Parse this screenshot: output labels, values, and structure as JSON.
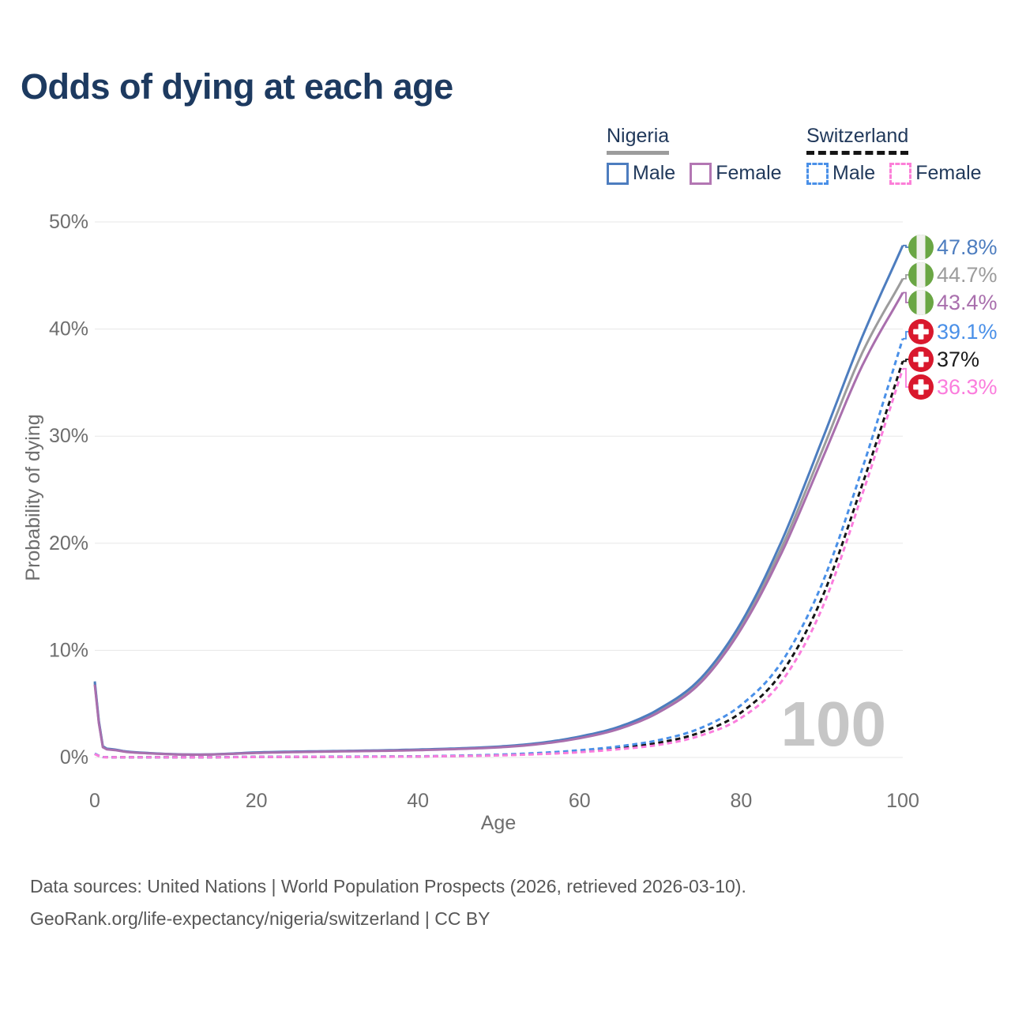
{
  "title": "Odds of dying at each age",
  "legend": {
    "groups": [
      {
        "label": "Nigeria",
        "line_style": "solid",
        "underline_color": "#9c9c9c",
        "items": [
          {
            "label": "Male",
            "color": "#4d7dbf"
          },
          {
            "label": "Female",
            "color": "#b377b3"
          }
        ]
      },
      {
        "label": "Switzerland",
        "line_style": "dashed",
        "underline_color": "#151515",
        "items": [
          {
            "label": "Male",
            "color": "#4a90e8"
          },
          {
            "label": "Female",
            "color": "#fc7fd8"
          }
        ]
      }
    ]
  },
  "chart_data": {
    "type": "line",
    "title": "Odds of dying at each age",
    "xlabel": "Age",
    "ylabel": "Probability of dying",
    "xlim": [
      0,
      100
    ],
    "ylim": [
      0,
      50
    ],
    "x_ticks": [
      0,
      20,
      40,
      60,
      80,
      100
    ],
    "y_tick_labels": [
      "0%",
      "10%",
      "20%",
      "30%",
      "40%",
      "50%"
    ],
    "grid": "horizontal",
    "legend_position": "top-right",
    "watermark": "100",
    "series": [
      {
        "id": "nigeria-male",
        "country": "Nigeria",
        "sex": "male",
        "color": "#4d7dbf",
        "dashed": false,
        "end_label": "47.8%",
        "points": [
          [
            0,
            7.1
          ],
          [
            1,
            1.05
          ],
          [
            2,
            0.78
          ],
          [
            4,
            0.55
          ],
          [
            6,
            0.44
          ],
          [
            8,
            0.36
          ],
          [
            10,
            0.3
          ],
          [
            13,
            0.27
          ],
          [
            16,
            0.33
          ],
          [
            20,
            0.47
          ],
          [
            25,
            0.55
          ],
          [
            30,
            0.6
          ],
          [
            35,
            0.66
          ],
          [
            40,
            0.74
          ],
          [
            45,
            0.85
          ],
          [
            50,
            1.02
          ],
          [
            55,
            1.35
          ],
          [
            60,
            1.95
          ],
          [
            65,
            2.9
          ],
          [
            70,
            4.6
          ],
          [
            75,
            7.4
          ],
          [
            80,
            12.6
          ],
          [
            85,
            20.2
          ],
          [
            90,
            29.6
          ],
          [
            95,
            39.3
          ],
          [
            100,
            47.8
          ]
        ]
      },
      {
        "id": "nigeria-both",
        "country": "Nigeria",
        "sex": "both",
        "color": "#9c9c9c",
        "dashed": false,
        "end_label": "44.7%",
        "points": [
          [
            0,
            6.95
          ],
          [
            1,
            1.0
          ],
          [
            2,
            0.75
          ],
          [
            4,
            0.53
          ],
          [
            6,
            0.42
          ],
          [
            8,
            0.35
          ],
          [
            10,
            0.29
          ],
          [
            13,
            0.26
          ],
          [
            16,
            0.32
          ],
          [
            20,
            0.44
          ],
          [
            25,
            0.52
          ],
          [
            30,
            0.58
          ],
          [
            35,
            0.63
          ],
          [
            40,
            0.71
          ],
          [
            45,
            0.82
          ],
          [
            50,
            0.98
          ],
          [
            55,
            1.3
          ],
          [
            60,
            1.87
          ],
          [
            65,
            2.8
          ],
          [
            70,
            4.45
          ],
          [
            75,
            7.2
          ],
          [
            80,
            12.3
          ],
          [
            85,
            19.6
          ],
          [
            90,
            28.6
          ],
          [
            95,
            37.8
          ],
          [
            100,
            44.7
          ]
        ]
      },
      {
        "id": "nigeria-female",
        "country": "Nigeria",
        "sex": "female",
        "color": "#a96fad",
        "dashed": false,
        "end_label": "43.4%",
        "points": [
          [
            0,
            6.8
          ],
          [
            1,
            0.95
          ],
          [
            2,
            0.72
          ],
          [
            4,
            0.51
          ],
          [
            6,
            0.41
          ],
          [
            8,
            0.34
          ],
          [
            10,
            0.28
          ],
          [
            13,
            0.26
          ],
          [
            16,
            0.31
          ],
          [
            20,
            0.42
          ],
          [
            25,
            0.5
          ],
          [
            30,
            0.56
          ],
          [
            35,
            0.61
          ],
          [
            40,
            0.68
          ],
          [
            45,
            0.79
          ],
          [
            50,
            0.94
          ],
          [
            55,
            1.25
          ],
          [
            60,
            1.8
          ],
          [
            65,
            2.7
          ],
          [
            70,
            4.3
          ],
          [
            75,
            7.0
          ],
          [
            80,
            12.0
          ],
          [
            85,
            19.1
          ],
          [
            90,
            27.8
          ],
          [
            95,
            36.6
          ],
          [
            100,
            43.4
          ]
        ]
      },
      {
        "id": "switzerland-male",
        "country": "Switzerland",
        "sex": "male",
        "color": "#4a90e8",
        "dashed": true,
        "end_label": "39.1%",
        "points": [
          [
            0,
            0.36
          ],
          [
            1,
            0.04
          ],
          [
            5,
            0.02
          ],
          [
            10,
            0.015
          ],
          [
            15,
            0.03
          ],
          [
            20,
            0.06
          ],
          [
            25,
            0.07
          ],
          [
            30,
            0.08
          ],
          [
            35,
            0.09
          ],
          [
            40,
            0.11
          ],
          [
            45,
            0.17
          ],
          [
            50,
            0.26
          ],
          [
            55,
            0.42
          ],
          [
            60,
            0.67
          ],
          [
            65,
            1.05
          ],
          [
            70,
            1.65
          ],
          [
            75,
            2.75
          ],
          [
            80,
            4.9
          ],
          [
            85,
            8.9
          ],
          [
            90,
            16.2
          ],
          [
            95,
            27.0
          ],
          [
            100,
            39.1
          ]
        ]
      },
      {
        "id": "switzerland-both",
        "country": "Switzerland",
        "sex": "both",
        "color": "#151515",
        "dashed": true,
        "end_label": "37%",
        "points": [
          [
            0,
            0.34
          ],
          [
            1,
            0.035
          ],
          [
            5,
            0.018
          ],
          [
            10,
            0.013
          ],
          [
            15,
            0.025
          ],
          [
            20,
            0.05
          ],
          [
            25,
            0.055
          ],
          [
            30,
            0.065
          ],
          [
            35,
            0.075
          ],
          [
            40,
            0.095
          ],
          [
            45,
            0.15
          ],
          [
            50,
            0.22
          ],
          [
            55,
            0.36
          ],
          [
            60,
            0.57
          ],
          [
            65,
            0.9
          ],
          [
            70,
            1.4
          ],
          [
            75,
            2.35
          ],
          [
            80,
            4.2
          ],
          [
            85,
            7.9
          ],
          [
            90,
            14.9
          ],
          [
            95,
            25.5
          ],
          [
            100,
            37.0
          ]
        ]
      },
      {
        "id": "switzerland-female",
        "country": "Switzerland",
        "sex": "female",
        "color": "#fb7ddd",
        "dashed": true,
        "end_label": "36.3%",
        "points": [
          [
            0,
            0.32
          ],
          [
            1,
            0.03
          ],
          [
            5,
            0.016
          ],
          [
            10,
            0.012
          ],
          [
            15,
            0.02
          ],
          [
            20,
            0.04
          ],
          [
            25,
            0.05
          ],
          [
            30,
            0.055
          ],
          [
            35,
            0.065
          ],
          [
            40,
            0.085
          ],
          [
            45,
            0.13
          ],
          [
            50,
            0.19
          ],
          [
            55,
            0.31
          ],
          [
            60,
            0.49
          ],
          [
            65,
            0.78
          ],
          [
            70,
            1.2
          ],
          [
            75,
            2.05
          ],
          [
            80,
            3.7
          ],
          [
            85,
            7.1
          ],
          [
            90,
            13.9
          ],
          [
            95,
            24.6
          ],
          [
            100,
            36.3
          ]
        ]
      }
    ]
  },
  "footer": {
    "line1": "Data sources: United Nations | World Population Prospects (2026, retrieved 2026-03-10).",
    "line2": "GeoRank.org/life-expectancy/nigeria/switzerland | CC BY"
  }
}
